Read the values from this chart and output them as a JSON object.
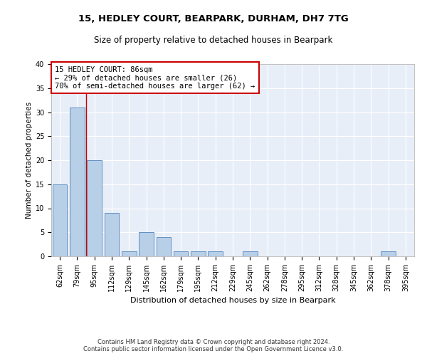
{
  "title1": "15, HEDLEY COURT, BEARPARK, DURHAM, DH7 7TG",
  "title2": "Size of property relative to detached houses in Bearpark",
  "xlabel": "Distribution of detached houses by size in Bearpark",
  "ylabel": "Number of detached properties",
  "categories": [
    "62sqm",
    "79sqm",
    "95sqm",
    "112sqm",
    "129sqm",
    "145sqm",
    "162sqm",
    "179sqm",
    "195sqm",
    "212sqm",
    "229sqm",
    "245sqm",
    "262sqm",
    "278sqm",
    "295sqm",
    "312sqm",
    "328sqm",
    "345sqm",
    "362sqm",
    "378sqm",
    "395sqm"
  ],
  "values": [
    15,
    31,
    20,
    9,
    1,
    5,
    4,
    1,
    1,
    1,
    0,
    1,
    0,
    0,
    0,
    0,
    0,
    0,
    0,
    1,
    0
  ],
  "bar_color": "#b8cfe8",
  "bar_edgecolor": "#6090c0",
  "annotation_box_text": "15 HEDLEY COURT: 86sqm\n← 29% of detached houses are smaller (26)\n70% of semi-detached houses are larger (62) →",
  "footer_line1": "Contains HM Land Registry data © Crown copyright and database right 2024.",
  "footer_line2": "Contains public sector information licensed under the Open Government Licence v3.0.",
  "ylim": [
    0,
    40
  ],
  "yticks": [
    0,
    5,
    10,
    15,
    20,
    25,
    30,
    35,
    40
  ],
  "plot_bg_color": "#e8eef8",
  "annotation_rect_color": "#cc0000",
  "vline_color": "#cc0000",
  "vline_x": 1.5,
  "title1_fontsize": 9.5,
  "title2_fontsize": 8.5,
  "ylabel_fontsize": 7.5,
  "xlabel_fontsize": 8,
  "tick_fontsize": 7,
  "annot_fontsize": 7.5,
  "footer_fontsize": 6
}
